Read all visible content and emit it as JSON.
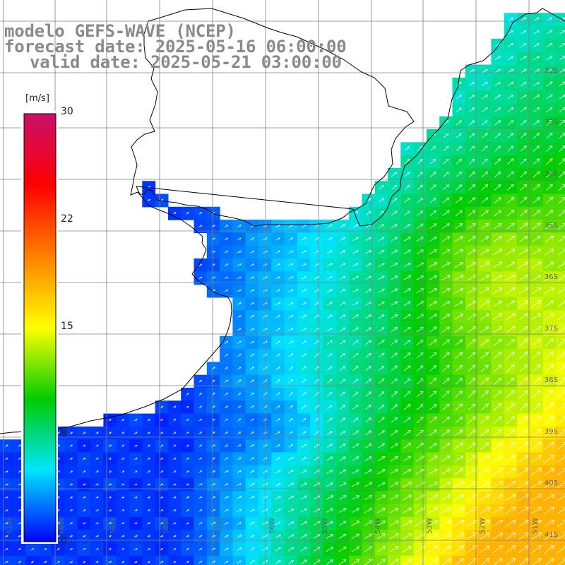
{
  "title": {
    "line1": "modelo GEFS-WAVE (NCEP)",
    "line2": "forecast date: 2025-05-16 06:00:00",
    "line3": "valid date: 2025-05-21 03:00:00"
  },
  "colorbar": {
    "unit": "[m/s]",
    "ticks": [
      "30",
      "22",
      "15",
      "8",
      "0"
    ],
    "min": 0,
    "max": 30,
    "stops": [
      "#0000ff",
      "#00e5ff",
      "#00cc00",
      "#ffff00",
      "#ff8000",
      "#ff0000",
      "#c8106a"
    ]
  },
  "map": {
    "lat_labels": [
      "32S",
      "33S",
      "34S",
      "35S",
      "36S",
      "37S",
      "38S",
      "39S",
      "40S",
      "41S"
    ],
    "lon_labels": [
      "61W",
      "60W",
      "59W",
      "58W",
      "57W",
      "56W",
      "55W",
      "54W",
      "53W",
      "52W",
      "51W"
    ],
    "field": "wind speed",
    "colors": {
      "land": "#ffffff",
      "coastline": "#000000",
      "grid": "#808080",
      "arrows": "#ffffff"
    }
  }
}
